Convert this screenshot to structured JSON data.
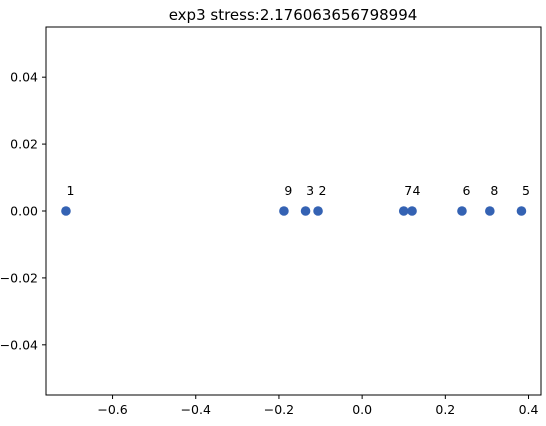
{
  "chart_data": {
    "type": "scatter",
    "title": "exp3 stress:2.176063656798994",
    "xlabel": "",
    "ylabel": "",
    "xlim": [
      -0.76,
      0.43
    ],
    "ylim": [
      -0.055,
      0.055
    ],
    "x_ticks": [
      {
        "value": -0.6,
        "label": "−0.6"
      },
      {
        "value": -0.4,
        "label": "−0.4"
      },
      {
        "value": -0.2,
        "label": "−0.2"
      },
      {
        "value": 0.0,
        "label": "0.0"
      },
      {
        "value": 0.2,
        "label": "0.2"
      },
      {
        "value": 0.4,
        "label": "0.4"
      }
    ],
    "y_ticks": [
      {
        "value": 0.04,
        "label": "0.04"
      },
      {
        "value": 0.02,
        "label": "0.02"
      },
      {
        "value": 0.0,
        "label": "0.00"
      },
      {
        "value": -0.02,
        "label": "−0.02"
      },
      {
        "value": -0.04,
        "label": "−0.04"
      }
    ],
    "grid": false,
    "marker_color": "#3462b3",
    "points": [
      {
        "label": "1",
        "x": -0.712,
        "y": 0.0
      },
      {
        "label": "9",
        "x": -0.188,
        "y": 0.0
      },
      {
        "label": "3",
        "x": -0.136,
        "y": 0.0
      },
      {
        "label": "2",
        "x": -0.106,
        "y": 0.0
      },
      {
        "label": "7",
        "x": 0.1,
        "y": 0.0
      },
      {
        "label": "4",
        "x": 0.12,
        "y": 0.0
      },
      {
        "label": "6",
        "x": 0.24,
        "y": 0.0
      },
      {
        "label": "8",
        "x": 0.307,
        "y": 0.0
      },
      {
        "label": "5",
        "x": 0.383,
        "y": 0.0
      }
    ]
  }
}
